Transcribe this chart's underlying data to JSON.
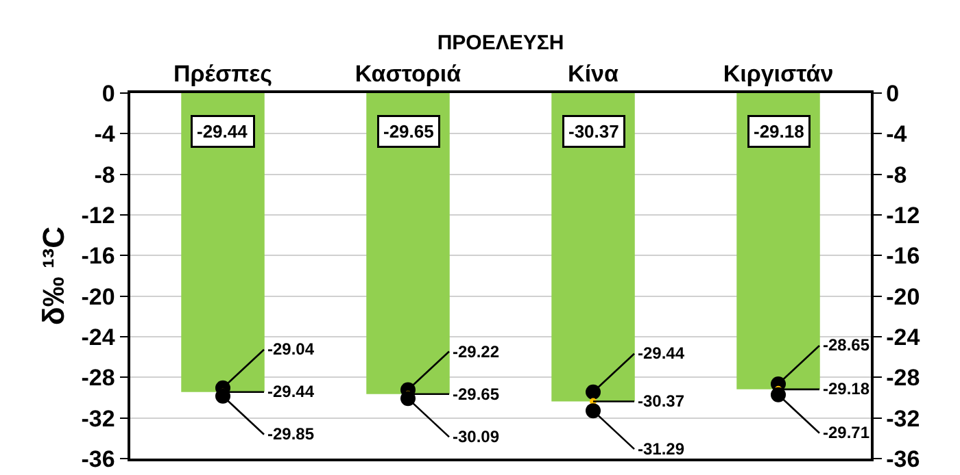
{
  "chart_data": {
    "type": "bar",
    "xlabel": "ΠΡΟΕΛΕΥΣΗ",
    "ylabel": "δ‰ ¹³C",
    "categories": [
      "Πρέσπες",
      "Καστοριά",
      "Κίνα",
      "Κιργιστάν"
    ],
    "series": [
      {
        "color": "#92d050",
        "values": [
          -29.44,
          -29.65,
          -30.37,
          -29.18
        ]
      },
      {
        "type": "scatter",
        "color": "#000000",
        "values": [
          -29.04,
          -29.22,
          -29.44,
          -28.65
        ],
        "value_labels": [
          "-29.04",
          "-29.22",
          "-29.44",
          "-28.65"
        ]
      },
      {
        "type": "scatter",
        "color": "#ffc000",
        "values": [
          -29.44,
          -29.65,
          -30.37,
          -29.18
        ],
        "value_labels": [
          "-29.44",
          "-29.65",
          "-30.37",
          "-29.18"
        ]
      },
      {
        "type": "scatter",
        "color": "#000000",
        "values": [
          -29.85,
          -30.09,
          -31.29,
          -29.71
        ],
        "value_labels": [
          "-29.85",
          "-30.09",
          "-31.29",
          "-29.71"
        ]
      }
    ],
    "annotations": [
      "-29.44",
      "-29.65",
      "-30.37",
      "-29.18"
    ],
    "ylim": [
      -36,
      0
    ],
    "yticks": [
      0,
      -4,
      -8,
      -12,
      -16,
      -20,
      -24,
      -28,
      -32,
      -36
    ],
    "y2lim": [
      -36,
      0
    ],
    "y2ticks": [
      0,
      -4,
      -8,
      -12,
      -16,
      -20,
      -24,
      -28,
      -32,
      -36
    ],
    "grid": "y",
    "marker": "circle"
  }
}
